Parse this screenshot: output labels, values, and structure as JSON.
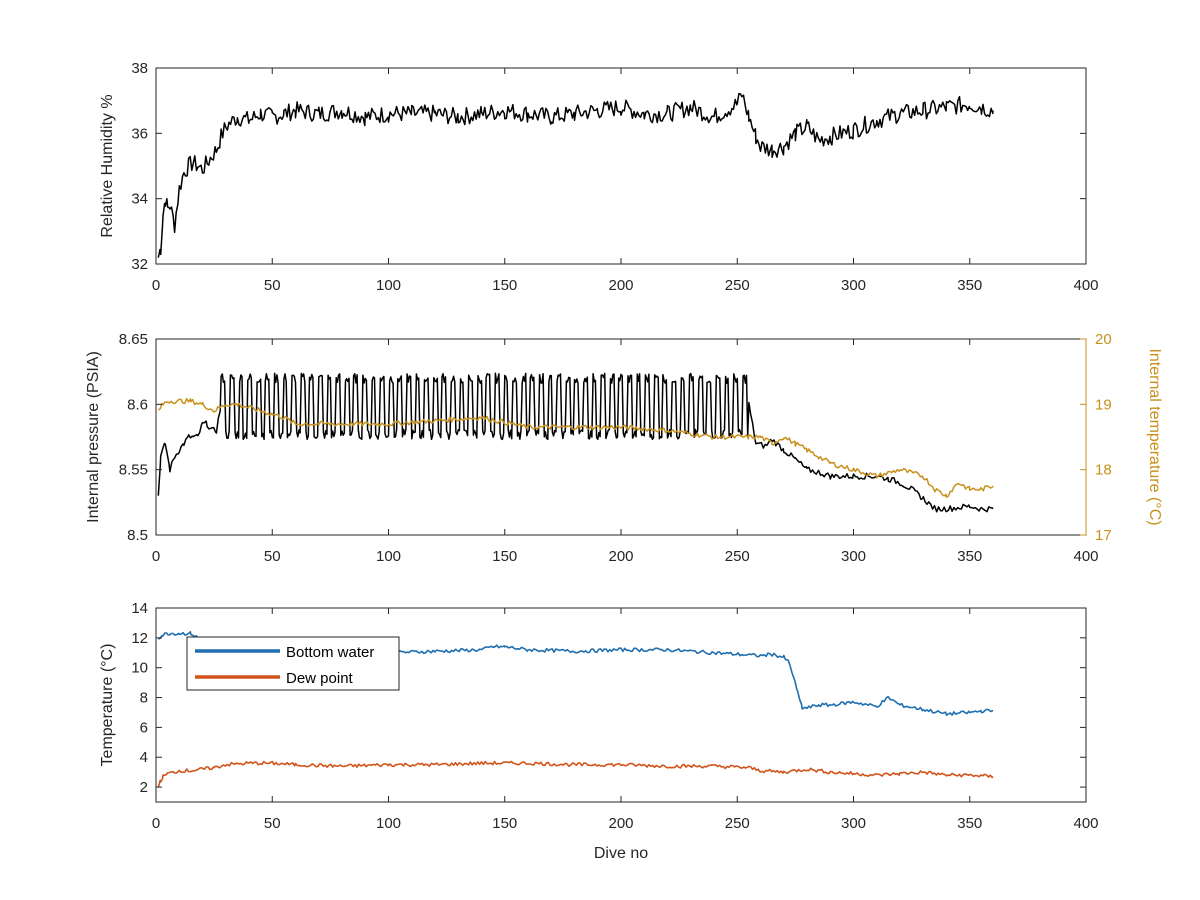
{
  "colors": {
    "black": "#000000",
    "temperature_axis": "#C8911C",
    "bottom_water": "#1f6fb0",
    "dew_point": "#d1541b",
    "axis": "#262626"
  },
  "chart_data": [
    {
      "type": "line",
      "ylabel": "Relative Humidity %",
      "xlabel": "",
      "xlim": [
        0,
        400
      ],
      "ylim": [
        32,
        38
      ],
      "xticks": [
        "0",
        "50",
        "100",
        "150",
        "200",
        "250",
        "300",
        "350",
        "400"
      ],
      "yticks": [
        "32",
        "34",
        "36",
        "38"
      ],
      "grid": false,
      "series": [
        {
          "name": "",
          "color": "#000000",
          "x": [
            1,
            2,
            3,
            4,
            5,
            6,
            8,
            10,
            12,
            14,
            16,
            18,
            20,
            22,
            24,
            26,
            28,
            30,
            35,
            40,
            45,
            50,
            55,
            60,
            70,
            80,
            90,
            100,
            110,
            120,
            130,
            140,
            150,
            160,
            170,
            180,
            190,
            200,
            210,
            220,
            230,
            240,
            250,
            252,
            255,
            258,
            260,
            265,
            270,
            275,
            280,
            285,
            290,
            300,
            310,
            320,
            330,
            340,
            350,
            355,
            360
          ],
          "y": [
            32.2,
            32.5,
            33.5,
            34.0,
            33.7,
            33.8,
            33.2,
            34.3,
            34.8,
            35.0,
            35.1,
            35.0,
            34.9,
            35.1,
            35.3,
            35.5,
            35.9,
            36.2,
            36.5,
            36.4,
            36.6,
            36.5,
            36.6,
            36.7,
            36.6,
            36.7,
            36.5,
            36.6,
            36.6,
            36.6,
            36.5,
            36.6,
            36.7,
            36.6,
            36.5,
            36.6,
            36.7,
            36.8,
            36.6,
            36.6,
            36.8,
            36.5,
            36.9,
            37.2,
            36.5,
            35.9,
            35.6,
            35.5,
            35.6,
            36.0,
            36.2,
            35.8,
            35.9,
            36.1,
            36.4,
            36.6,
            36.7,
            36.8,
            36.9,
            36.8,
            36.7
          ]
        }
      ]
    },
    {
      "type": "line",
      "ylabel": "Internal pressure (PSIA)",
      "y2label": "Internal temperature (°C)",
      "xlabel": "",
      "xlim": [
        0,
        400
      ],
      "ylim": [
        8.5,
        8.65
      ],
      "y2lim": [
        17,
        20
      ],
      "xticks": [
        "0",
        "50",
        "100",
        "150",
        "200",
        "250",
        "300",
        "350",
        "400"
      ],
      "yticks": [
        "8.5",
        "8.55",
        "8.6",
        "8.65"
      ],
      "y2ticks": [
        "17",
        "18",
        "19",
        "20"
      ],
      "grid": false,
      "series": [
        {
          "name": "",
          "color": "#000000",
          "axis": "left",
          "oscillation": {
            "start": 28,
            "end": 255,
            "low": 8.577,
            "high": 8.62,
            "period": 3.8
          },
          "x": [
            1,
            2,
            4,
            6,
            8,
            10,
            12,
            14,
            16,
            18,
            20,
            22,
            24,
            26,
            28,
            255,
            258,
            262,
            265,
            270,
            275,
            280,
            285,
            290,
            300,
            310,
            315,
            320,
            325,
            330,
            335,
            340,
            350,
            355,
            360
          ],
          "y": [
            8.53,
            8.56,
            8.57,
            8.55,
            8.56,
            8.565,
            8.57,
            8.575,
            8.575,
            8.575,
            8.585,
            8.585,
            8.58,
            8.58,
            8.6,
            8.6,
            8.57,
            8.568,
            8.573,
            8.565,
            8.558,
            8.55,
            8.548,
            8.545,
            8.545,
            8.545,
            8.543,
            8.54,
            8.535,
            8.528,
            8.52,
            8.52,
            8.522,
            8.52,
            8.52
          ]
        },
        {
          "name": "",
          "color": "#C8911C",
          "axis": "right",
          "x": [
            1,
            3,
            5,
            10,
            15,
            20,
            25,
            30,
            35,
            40,
            45,
            50,
            55,
            60,
            70,
            80,
            90,
            100,
            120,
            140,
            160,
            170,
            180,
            200,
            220,
            240,
            250,
            255,
            260,
            265,
            270,
            275,
            280,
            285,
            290,
            300,
            310,
            320,
            330,
            335,
            340,
            345,
            350,
            355,
            360
          ],
          "y": [
            18.9,
            19.0,
            19.05,
            19.05,
            19.05,
            19.0,
            18.9,
            19.0,
            19.0,
            18.95,
            18.9,
            18.85,
            18.8,
            18.7,
            18.7,
            18.7,
            18.7,
            18.7,
            18.75,
            18.8,
            18.65,
            18.65,
            18.65,
            18.65,
            18.6,
            18.5,
            18.5,
            18.5,
            18.5,
            18.4,
            18.5,
            18.4,
            18.3,
            18.2,
            18.1,
            18.0,
            17.9,
            18.0,
            17.9,
            17.7,
            17.6,
            17.8,
            17.7,
            17.7,
            17.75
          ]
        }
      ]
    },
    {
      "type": "line",
      "ylabel": "Temperature (°C)",
      "xlabel": "Dive no",
      "xlim": [
        0,
        400
      ],
      "ylim": [
        1,
        14
      ],
      "xticks": [
        "0",
        "50",
        "100",
        "150",
        "200",
        "250",
        "300",
        "350",
        "400"
      ],
      "yticks": [
        "2",
        "4",
        "6",
        "8",
        "10",
        "12",
        "14"
      ],
      "grid": false,
      "legend": "top-left",
      "series": [
        {
          "name": "Bottom water",
          "color": "#1f6fb0",
          "x": [
            1,
            3,
            5,
            10,
            15,
            18,
            20,
            25,
            30,
            40,
            50,
            60,
            80,
            100,
            120,
            140,
            145,
            150,
            160,
            180,
            200,
            220,
            240,
            260,
            265,
            270,
            272,
            274,
            276,
            278,
            280,
            285,
            290,
            300,
            310,
            315,
            320,
            330,
            340,
            350,
            355,
            360
          ],
          "y": [
            12.0,
            12.2,
            12.3,
            12.3,
            12.3,
            12.0,
            11.5,
            11.3,
            11.2,
            11.1,
            11.1,
            11.0,
            11.0,
            11.0,
            11.1,
            11.2,
            11.4,
            11.4,
            11.2,
            11.1,
            11.2,
            11.2,
            11.0,
            10.8,
            10.9,
            10.7,
            10.4,
            9.5,
            8.3,
            7.3,
            7.3,
            7.5,
            7.5,
            7.7,
            7.4,
            8.0,
            7.5,
            7.2,
            6.9,
            7.0,
            7.1,
            7.1
          ]
        },
        {
          "name": "Dew point",
          "color": "#d1541b",
          "x": [
            1,
            2,
            3,
            5,
            8,
            10,
            15,
            20,
            25,
            30,
            40,
            50,
            60,
            80,
            100,
            120,
            140,
            160,
            180,
            200,
            220,
            240,
            255,
            260,
            270,
            280,
            290,
            300,
            310,
            320,
            330,
            340,
            350,
            360
          ],
          "y": [
            2.1,
            2.4,
            2.7,
            2.9,
            3.0,
            3.1,
            3.1,
            3.2,
            3.3,
            3.5,
            3.6,
            3.6,
            3.5,
            3.4,
            3.5,
            3.5,
            3.6,
            3.6,
            3.5,
            3.5,
            3.4,
            3.4,
            3.3,
            3.1,
            3.0,
            3.2,
            3.0,
            2.9,
            2.8,
            2.9,
            3.0,
            2.8,
            2.8,
            2.7
          ]
        }
      ]
    }
  ]
}
